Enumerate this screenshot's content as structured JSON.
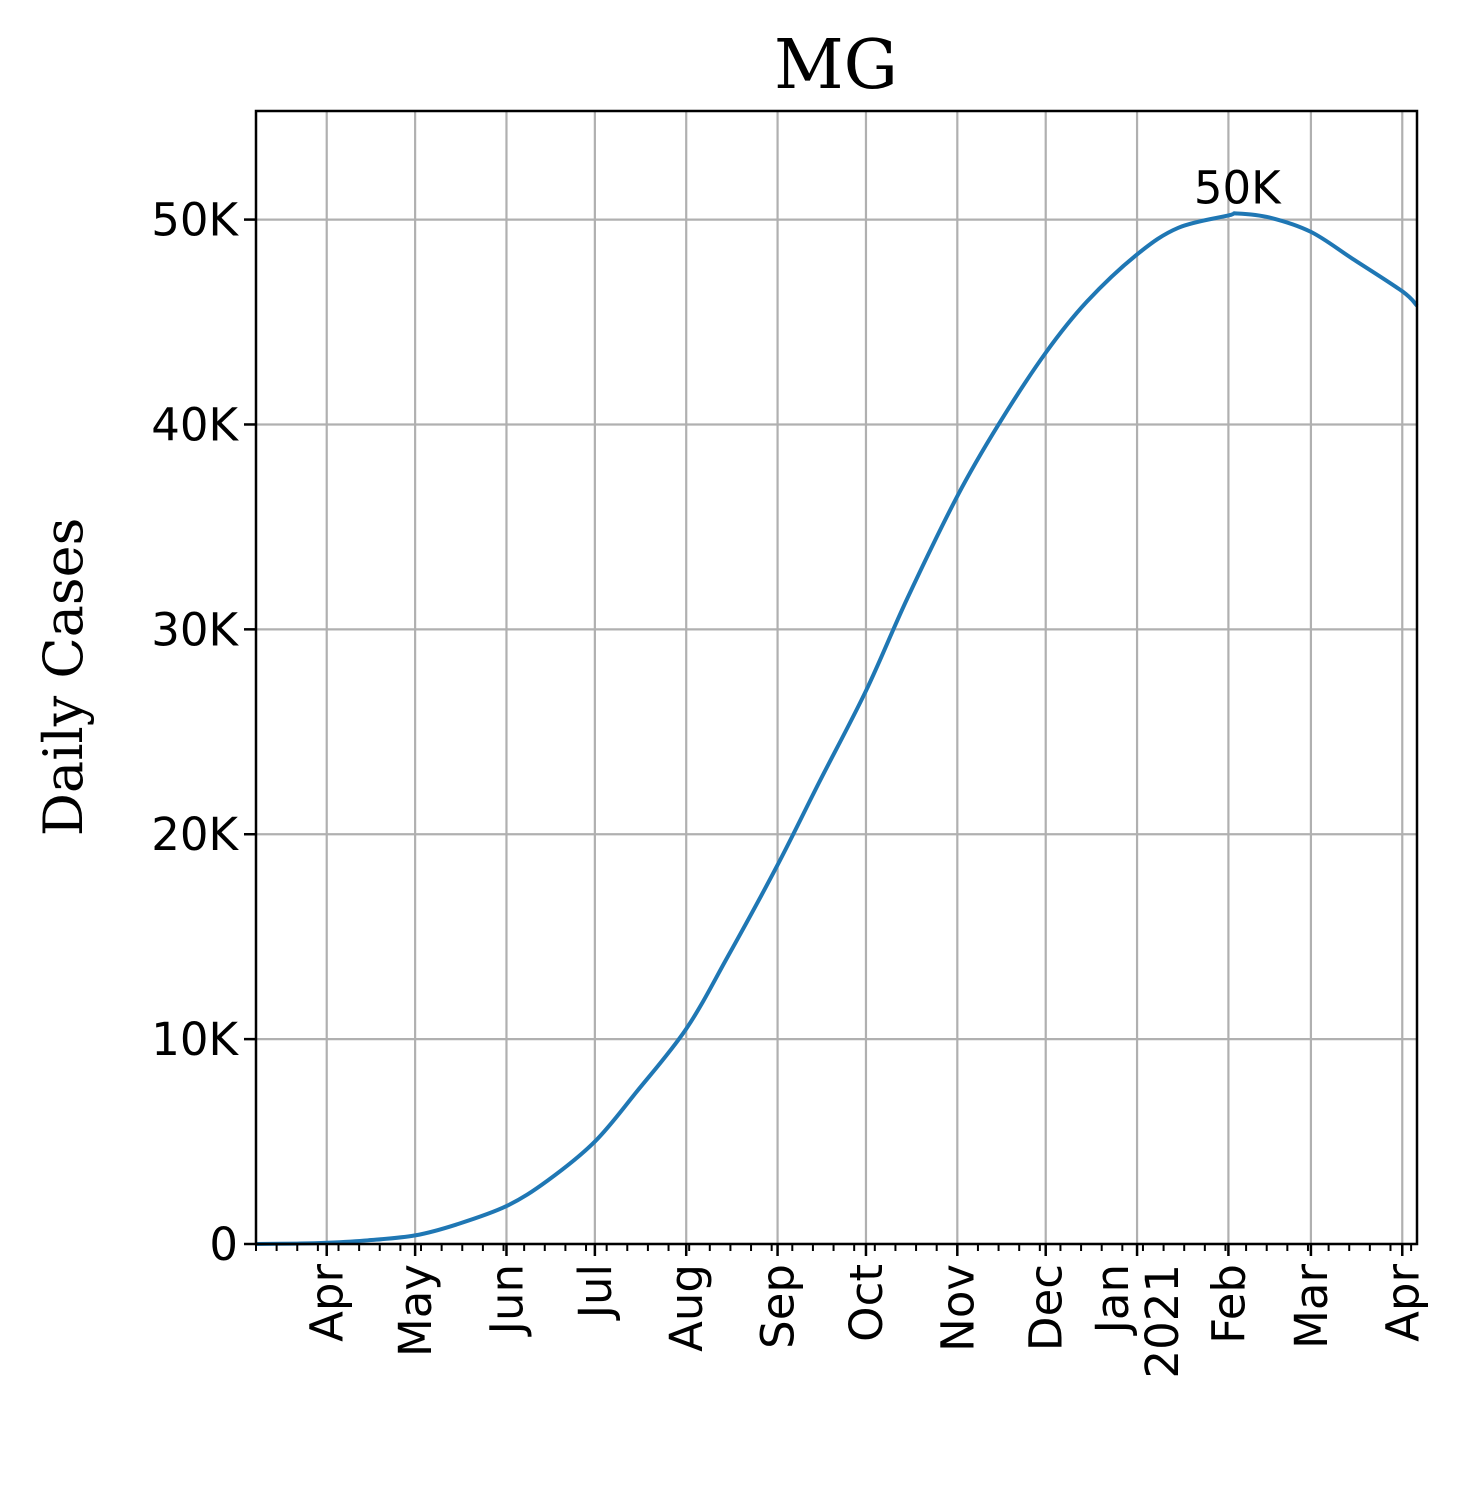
{
  "chart_data": {
    "type": "line",
    "title": "MG",
    "xlabel": "",
    "ylabel": "Daily Cases",
    "grid": true,
    "legend": "none",
    "colors": {
      "line": "#1f77b4",
      "grid": "#b0b0b0",
      "axis": "#000000"
    },
    "xlim": [
      "2020-03-08",
      "2021-04-06"
    ],
    "ylim": [
      0,
      55300
    ],
    "yticks": [
      {
        "value": 0,
        "label": "0"
      },
      {
        "value": 10000,
        "label": "10K"
      },
      {
        "value": 20000,
        "label": "20K"
      },
      {
        "value": 30000,
        "label": "30K"
      },
      {
        "value": 40000,
        "label": "40K"
      },
      {
        "value": 50000,
        "label": "50K"
      }
    ],
    "xticks": [
      {
        "date": "2020-04-01",
        "label": "Apr"
      },
      {
        "date": "2020-05-01",
        "label": "May"
      },
      {
        "date": "2020-06-01",
        "label": "Jun"
      },
      {
        "date": "2020-07-01",
        "label": "Jul"
      },
      {
        "date": "2020-08-01",
        "label": "Aug"
      },
      {
        "date": "2020-09-01",
        "label": "Sep"
      },
      {
        "date": "2020-10-01",
        "label": "Oct"
      },
      {
        "date": "2020-11-01",
        "label": "Nov"
      },
      {
        "date": "2020-12-01",
        "label": "Dec"
      },
      {
        "date": "2021-01-01",
        "label": "Jan\n2021"
      },
      {
        "date": "2021-02-01",
        "label": "Feb"
      },
      {
        "date": "2021-03-01",
        "label": "Mar"
      },
      {
        "date": "2021-04-01",
        "label": "Apr"
      }
    ],
    "series": [
      {
        "name": "",
        "points": [
          {
            "x": "2020-03-08",
            "y": 0
          },
          {
            "x": "2020-03-22",
            "y": 20
          },
          {
            "x": "2020-04-01",
            "y": 60
          },
          {
            "x": "2020-04-15",
            "y": 180
          },
          {
            "x": "2020-05-01",
            "y": 420
          },
          {
            "x": "2020-05-15",
            "y": 950
          },
          {
            "x": "2020-06-01",
            "y": 1850
          },
          {
            "x": "2020-06-15",
            "y": 3100
          },
          {
            "x": "2020-07-01",
            "y": 5000
          },
          {
            "x": "2020-07-15",
            "y": 7400
          },
          {
            "x": "2020-08-01",
            "y": 10500
          },
          {
            "x": "2020-08-15",
            "y": 14000
          },
          {
            "x": "2020-09-01",
            "y": 18500
          },
          {
            "x": "2020-09-15",
            "y": 22500
          },
          {
            "x": "2020-10-01",
            "y": 27000
          },
          {
            "x": "2020-10-15",
            "y": 31500
          },
          {
            "x": "2020-11-01",
            "y": 36500
          },
          {
            "x": "2020-11-15",
            "y": 40000
          },
          {
            "x": "2020-12-01",
            "y": 43500
          },
          {
            "x": "2020-12-15",
            "y": 46000
          },
          {
            "x": "2021-01-01",
            "y": 48300
          },
          {
            "x": "2021-01-15",
            "y": 49600
          },
          {
            "x": "2021-02-01",
            "y": 50200
          },
          {
            "x": "2021-02-04",
            "y": 50300
          },
          {
            "x": "2021-02-15",
            "y": 50100
          },
          {
            "x": "2021-03-01",
            "y": 49400
          },
          {
            "x": "2021-03-15",
            "y": 48100
          },
          {
            "x": "2021-04-01",
            "y": 46500
          },
          {
            "x": "2021-04-06",
            "y": 45800
          }
        ]
      }
    ],
    "annotations": [
      {
        "text": "50K",
        "x": "2021-02-04",
        "y": 50300
      }
    ]
  }
}
